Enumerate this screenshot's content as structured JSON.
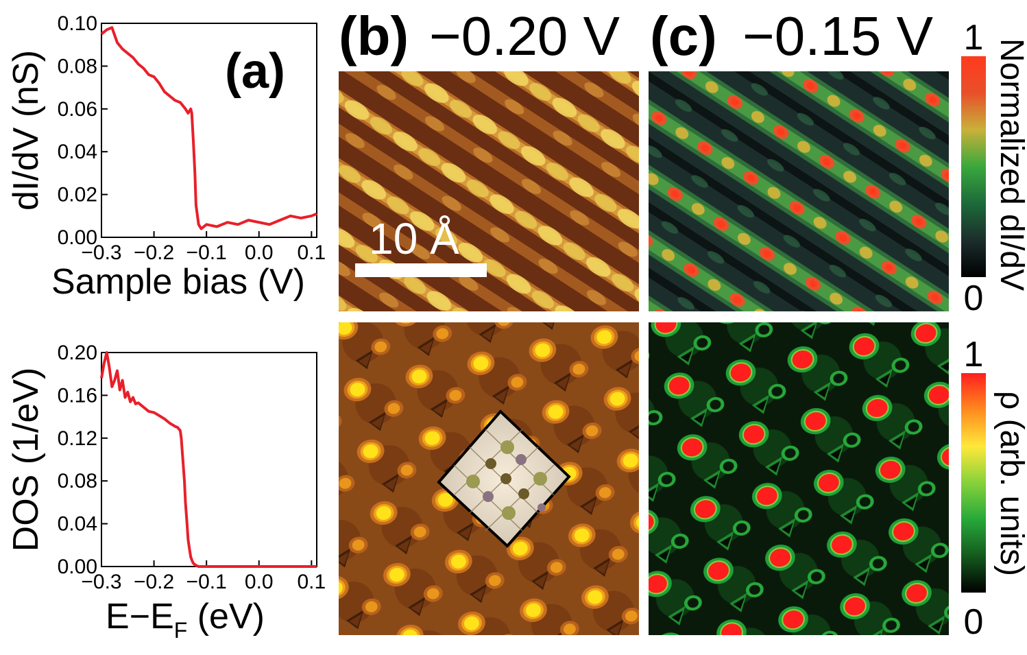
{
  "figure": {
    "panel_a_label": "(a)",
    "panel_b_label": "(b)",
    "panel_c_label": "(c)",
    "panel_b_bias": "−0.20 V",
    "panel_c_bias": "−0.15 V",
    "scale_bar_label": "10 Å",
    "colorbar_top": {
      "label": "Normalized dI/dV",
      "max_label": "1",
      "min_label": "0",
      "stops": [
        "#000000",
        "#1c2e2c",
        "#1c6a3a",
        "#3aa83c",
        "#c8b13a",
        "#e8502a",
        "#ff3a1e"
      ]
    },
    "colorbar_bottom": {
      "label": "ρ (arb. units)",
      "max_label": "1",
      "min_label": "0",
      "stops": [
        "#000000",
        "#145a1e",
        "#27a83a",
        "#86d23a",
        "#ffe83a",
        "#ff8a1e",
        "#ff1e1e"
      ]
    }
  },
  "chart_data": [
    {
      "type": "line",
      "panel": "a-top",
      "title": "",
      "xlabel": "Sample bias (V)",
      "ylabel": "dI/dV (nS)",
      "xlim": [
        -0.3,
        0.11
      ],
      "ylim": [
        0.0,
        0.1
      ],
      "xticks": [
        -0.3,
        -0.2,
        -0.1,
        0.0,
        0.1
      ],
      "xtick_labels": [
        "−0.3",
        "−0.2",
        "−0.1",
        "0.0",
        "0.1"
      ],
      "yticks": [
        0.0,
        0.02,
        0.04,
        0.06,
        0.08,
        0.1
      ],
      "ytick_labels": [
        "0.00",
        "0.02",
        "0.04",
        "0.06",
        "0.08",
        "0.10"
      ],
      "color": "#e8202a",
      "series": [
        {
          "name": "dI/dV",
          "x": [
            -0.3,
            -0.29,
            -0.28,
            -0.27,
            -0.26,
            -0.25,
            -0.24,
            -0.23,
            -0.22,
            -0.21,
            -0.2,
            -0.19,
            -0.18,
            -0.17,
            -0.16,
            -0.15,
            -0.14,
            -0.135,
            -0.13,
            -0.128,
            -0.125,
            -0.122,
            -0.12,
            -0.115,
            -0.11,
            -0.1,
            -0.08,
            -0.06,
            -0.04,
            -0.02,
            0.0,
            0.02,
            0.04,
            0.06,
            0.08,
            0.1,
            0.11
          ],
          "y": [
            0.095,
            0.097,
            0.098,
            0.091,
            0.088,
            0.086,
            0.084,
            0.081,
            0.079,
            0.076,
            0.075,
            0.072,
            0.068,
            0.066,
            0.064,
            0.063,
            0.06,
            0.058,
            0.06,
            0.058,
            0.045,
            0.03,
            0.015,
            0.006,
            0.004,
            0.006,
            0.005,
            0.007,
            0.006,
            0.008,
            0.007,
            0.006,
            0.008,
            0.01,
            0.009,
            0.01,
            0.011
          ]
        }
      ]
    },
    {
      "type": "line",
      "panel": "a-bottom",
      "title": "",
      "xlabel": "E−E",
      "xlabel_sub": "F",
      "xlabel_tail": " (eV)",
      "ylabel": "DOS (1/eV)",
      "xlim": [
        -0.3,
        0.11
      ],
      "ylim": [
        0.0,
        0.2
      ],
      "xticks": [
        -0.3,
        -0.2,
        -0.1,
        0.0,
        0.1
      ],
      "xtick_labels": [
        "−0.3",
        "−0.2",
        "−0.1",
        "0.0",
        "0.1"
      ],
      "yticks": [
        0.0,
        0.04,
        0.08,
        0.12,
        0.16,
        0.2
      ],
      "ytick_labels": [
        "0.00",
        "0.04",
        "0.08",
        "0.12",
        "0.16",
        "0.20"
      ],
      "color": "#e8202a",
      "series": [
        {
          "name": "DOS",
          "x": [
            -0.3,
            -0.295,
            -0.29,
            -0.285,
            -0.28,
            -0.275,
            -0.27,
            -0.265,
            -0.26,
            -0.255,
            -0.25,
            -0.245,
            -0.24,
            -0.235,
            -0.23,
            -0.22,
            -0.21,
            -0.2,
            -0.19,
            -0.18,
            -0.17,
            -0.16,
            -0.155,
            -0.15,
            -0.148,
            -0.145,
            -0.142,
            -0.14,
            -0.137,
            -0.135,
            -0.132,
            -0.13,
            -0.127,
            -0.125,
            -0.12,
            -0.115,
            -0.11,
            -0.1,
            -0.05,
            0.0,
            0.05,
            0.1,
            0.11
          ],
          "y": [
            0.176,
            0.19,
            0.2,
            0.186,
            0.168,
            0.174,
            0.183,
            0.165,
            0.174,
            0.158,
            0.163,
            0.154,
            0.158,
            0.152,
            0.153,
            0.149,
            0.145,
            0.144,
            0.141,
            0.138,
            0.134,
            0.131,
            0.13,
            0.127,
            0.12,
            0.1,
            0.08,
            0.06,
            0.04,
            0.025,
            0.015,
            0.009,
            0.005,
            0.003,
            0.001,
            0.0,
            0.0,
            0.0,
            0.0,
            0.0,
            0.0,
            0.0,
            0.0
          ]
        }
      ]
    }
  ]
}
